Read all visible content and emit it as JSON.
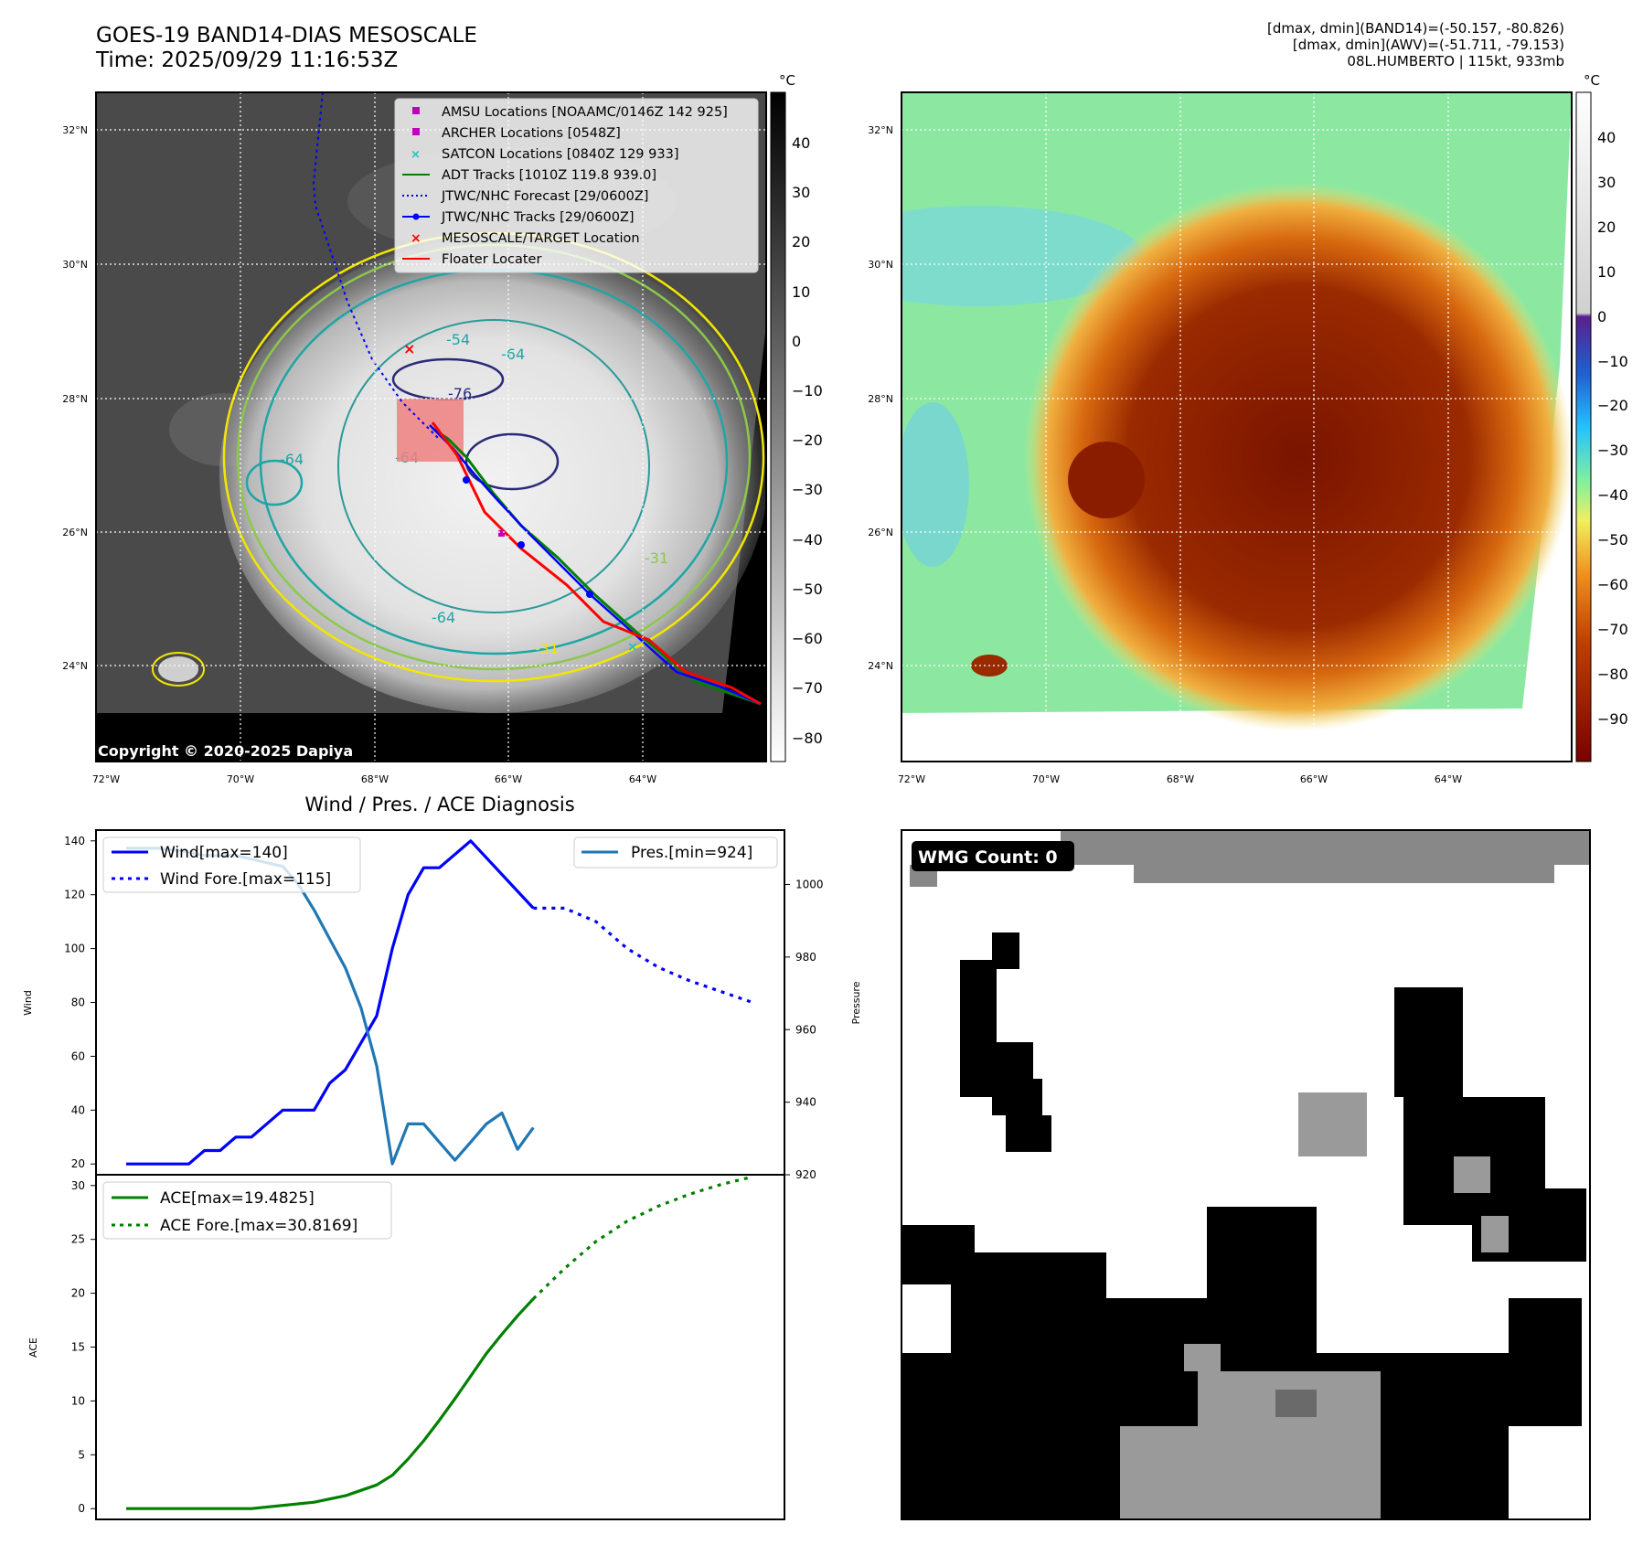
{
  "header": {
    "title_line1": "GOES-19 BAND14-DIAS MESOSCALE",
    "title_line2": "Time: 2025/09/29 11:16:53Z",
    "meta_line1": "[dmax, dmin](BAND14)=(-50.157, -80.826)",
    "meta_line2": "[dmax, dmin](AWV)=(-51.711, -79.153)",
    "meta_line3": "08L.HUMBERTO | 115kt, 933mb"
  },
  "maps": {
    "lat_labels": [
      "32°N",
      "30°N",
      "28°N",
      "26°N",
      "24°N"
    ],
    "lon_labels": [
      "72°W",
      "70°W",
      "68°W",
      "66°W",
      "64°W"
    ],
    "copyright": "Copyright © 2020-2025 Dapiya",
    "contour_labels": [
      "-54",
      "-64",
      "-76",
      "-64",
      "-64",
      "-31",
      "-31",
      "-64"
    ],
    "unit": "°C",
    "gray_colorbar_ticks": [
      "40",
      "30",
      "20",
      "10",
      "0",
      "−10",
      "−20",
      "−30",
      "−40",
      "−50",
      "−60",
      "−70",
      "−80"
    ],
    "color_colorbar_ticks": [
      "40",
      "30",
      "20",
      "10",
      "0",
      "−10",
      "−20",
      "−30",
      "−40",
      "−50",
      "−60",
      "−70",
      "−80",
      "−90"
    ],
    "legend": [
      {
        "label": "AMSU Locations [NOAAMC/0146Z 142 925]",
        "color": "#c000c0",
        "marker": "square"
      },
      {
        "label": "ARCHER Locations [0548Z]",
        "color": "#c000c0",
        "marker": "square"
      },
      {
        "label": "SATCON Locations [0840Z 129 933]",
        "color": "#20c0c0",
        "marker": "x"
      },
      {
        "label": "ADT Tracks [1010Z 119.8 939.0]",
        "color": "#008000",
        "marker": "line"
      },
      {
        "label": "JTWC/NHC Forecast [29/0600Z]",
        "color": "#0000ff",
        "marker": "dotted"
      },
      {
        "label": "JTWC/NHC Tracks [29/0600Z]",
        "color": "#0000ff",
        "marker": "line-dot"
      },
      {
        "label": "MESOSCALE/TARGET Location",
        "color": "#ff0000",
        "marker": "x"
      },
      {
        "label": "Floater Locater",
        "color": "#ff0000",
        "marker": "line"
      }
    ],
    "wmg_label": "WMG Count: 0"
  },
  "chart_data": [
    {
      "type": "line",
      "title": "Wind / Pres. / ACE Diagnosis",
      "ylabel": "Wind",
      "y2label": "Pressure",
      "ylim": [
        16,
        144
      ],
      "y2lim": [
        920,
        1015
      ],
      "yticks": [
        "20",
        "40",
        "60",
        "80",
        "100",
        "120",
        "140"
      ],
      "y2ticks": [
        "920",
        "940",
        "960",
        "980",
        "1000"
      ],
      "x": [
        0,
        1,
        2,
        3,
        4,
        5,
        6,
        7,
        8,
        9,
        10,
        11,
        12,
        13,
        14,
        15,
        16,
        17,
        18,
        19,
        20,
        21,
        22,
        23,
        24,
        25,
        26,
        27,
        28,
        29,
        30,
        31,
        32,
        33,
        34,
        35,
        36,
        37,
        38,
        39,
        40
      ],
      "series": [
        {
          "name": "Wind[max=140]",
          "color": "#0000ff",
          "x": [
            0,
            4,
            5,
            6,
            7,
            8,
            10,
            12,
            13,
            14,
            16,
            17,
            18,
            19,
            20,
            22,
            26
          ],
          "values": [
            20,
            20,
            25,
            25,
            30,
            30,
            40,
            40,
            50,
            55,
            75,
            100,
            120,
            130,
            130,
            140,
            115
          ]
        },
        {
          "name": "Wind Fore.[max=115]",
          "color": "#0000ff",
          "dashed": true,
          "x": [
            26,
            28,
            30,
            32,
            34,
            36,
            38,
            40
          ],
          "values": [
            115,
            115,
            110,
            100,
            93,
            88,
            84,
            80
          ]
        },
        {
          "name": "Pres.[min=924]",
          "color": "#1f77b4",
          "axis": "right",
          "x": [
            0,
            2,
            4,
            5,
            6,
            7,
            8,
            9,
            10,
            11,
            12,
            13,
            14,
            15,
            16,
            17,
            18,
            19,
            20,
            21,
            22,
            23,
            24,
            25,
            26
          ],
          "values": [
            1010,
            1010,
            1009,
            1008,
            1008,
            1008,
            1007,
            1006,
            1005,
            1000,
            993,
            985,
            977,
            966,
            950,
            923,
            934,
            934,
            929,
            924,
            929,
            934,
            937,
            927,
            933
          ]
        }
      ]
    },
    {
      "type": "line",
      "ylabel": "ACE",
      "ylim": [
        -1,
        31
      ],
      "yticks": [
        "0",
        "5",
        "10",
        "15",
        "20",
        "25",
        "30"
      ],
      "series": [
        {
          "name": "ACE[max=19.4825]",
          "color": "#008000",
          "x": [
            0,
            2,
            4,
            6,
            8,
            10,
            12,
            14,
            16,
            17,
            18,
            19,
            20,
            21,
            22,
            23,
            24,
            25,
            26
          ],
          "values": [
            0,
            0,
            0,
            0,
            0,
            0.3,
            0.6,
            1.2,
            2.2,
            3.1,
            4.6,
            6.3,
            8.2,
            10.2,
            12.3,
            14.4,
            16.2,
            17.9,
            19.4825
          ]
        },
        {
          "name": "ACE Fore.[max=30.8169]",
          "color": "#008000",
          "dashed": true,
          "x": [
            26,
            28,
            30,
            32,
            34,
            36,
            38,
            40
          ],
          "values": [
            19.4825,
            22.3,
            24.8,
            26.7,
            28.1,
            29.2,
            30.1,
            30.8169
          ]
        }
      ]
    }
  ]
}
